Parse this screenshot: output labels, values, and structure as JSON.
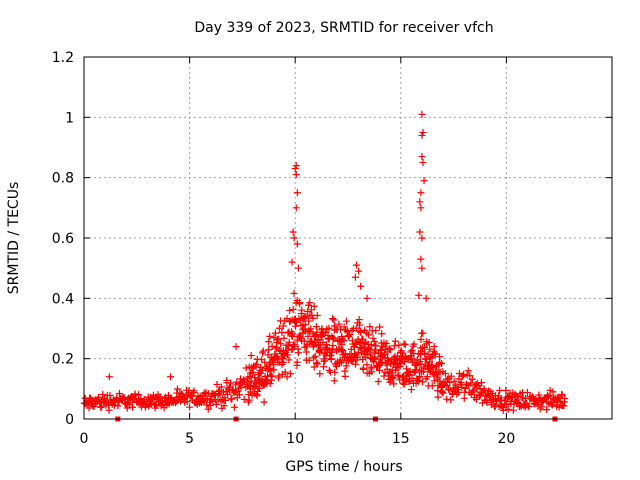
{
  "chart_data": {
    "type": "scatter",
    "title": "Day 339 of 2023, SRMTID for receiver vfch",
    "xlabel": "GPS time / hours",
    "ylabel": "SRMTID / TECUs",
    "xlim": [
      0,
      25
    ],
    "ylim": [
      0,
      1.2
    ],
    "xticks": [
      0,
      5,
      10,
      15,
      20
    ],
    "xtick_labels": [
      "0",
      "5",
      "10",
      "15",
      "20"
    ],
    "yticks": [
      0,
      0.2,
      0.4,
      0.6,
      0.8,
      1,
      1.2
    ],
    "ytick_labels": [
      "0",
      "0.2",
      "0.4",
      "0.6",
      "0.8",
      "1",
      "1.2"
    ],
    "grid": true,
    "marker": "+",
    "color": "#ff0000",
    "series": [
      {
        "name": "SRMTID",
        "profile_note": "approximate envelope of dense '+' markers read from the plot",
        "profile": {
          "x": [
            0,
            1,
            2,
            3,
            4,
            5,
            6,
            7,
            7.5,
            8,
            8.5,
            9,
            9.5,
            10,
            10.5,
            11,
            11.5,
            12,
            12.5,
            13,
            13.5,
            14,
            14.5,
            15,
            15.5,
            16,
            16.5,
            17,
            17.5,
            18,
            18.5,
            19,
            19.5,
            20,
            21,
            22,
            22.8
          ],
          "median": [
            0.05,
            0.06,
            0.06,
            0.06,
            0.06,
            0.07,
            0.07,
            0.09,
            0.11,
            0.13,
            0.15,
            0.19,
            0.24,
            0.3,
            0.3,
            0.26,
            0.24,
            0.24,
            0.22,
            0.23,
            0.21,
            0.2,
            0.18,
            0.18,
            0.17,
            0.2,
            0.18,
            0.12,
            0.1,
            0.12,
            0.11,
            0.08,
            0.07,
            0.06,
            0.06,
            0.06,
            0.06
          ],
          "spread": [
            0.025,
            0.03,
            0.025,
            0.025,
            0.025,
            0.03,
            0.03,
            0.05,
            0.06,
            0.07,
            0.08,
            0.1,
            0.12,
            0.13,
            0.12,
            0.11,
            0.1,
            0.1,
            0.1,
            0.1,
            0.09,
            0.09,
            0.08,
            0.08,
            0.08,
            0.09,
            0.09,
            0.06,
            0.05,
            0.06,
            0.05,
            0.04,
            0.03,
            0.03,
            0.03,
            0.03,
            0.03
          ]
        },
        "spikes": [
          {
            "x": 10.05,
            "y": 0.84
          },
          {
            "x": 10.0,
            "y": 0.83
          },
          {
            "x": 10.05,
            "y": 0.81
          },
          {
            "x": 10.1,
            "y": 0.75
          },
          {
            "x": 10.05,
            "y": 0.7
          },
          {
            "x": 9.9,
            "y": 0.62
          },
          {
            "x": 9.95,
            "y": 0.6
          },
          {
            "x": 10.1,
            "y": 0.58
          },
          {
            "x": 9.85,
            "y": 0.52
          },
          {
            "x": 10.15,
            "y": 0.5
          },
          {
            "x": 12.9,
            "y": 0.51
          },
          {
            "x": 13.0,
            "y": 0.49
          },
          {
            "x": 12.85,
            "y": 0.47
          },
          {
            "x": 13.1,
            "y": 0.44
          },
          {
            "x": 13.4,
            "y": 0.4
          },
          {
            "x": 16.0,
            "y": 1.01
          },
          {
            "x": 16.05,
            "y": 0.95
          },
          {
            "x": 16.0,
            "y": 0.94
          },
          {
            "x": 16.0,
            "y": 0.87
          },
          {
            "x": 16.05,
            "y": 0.85
          },
          {
            "x": 16.1,
            "y": 0.79
          },
          {
            "x": 15.95,
            "y": 0.75
          },
          {
            "x": 15.9,
            "y": 0.72
          },
          {
            "x": 15.95,
            "y": 0.7
          },
          {
            "x": 15.9,
            "y": 0.62
          },
          {
            "x": 16.0,
            "y": 0.6
          },
          {
            "x": 15.95,
            "y": 0.53
          },
          {
            "x": 16.0,
            "y": 0.5
          },
          {
            "x": 15.85,
            "y": 0.41
          },
          {
            "x": 16.2,
            "y": 0.4
          },
          {
            "x": 7.2,
            "y": 0.24
          },
          {
            "x": 4.1,
            "y": 0.14
          },
          {
            "x": 1.2,
            "y": 0.14
          }
        ]
      }
    ],
    "baseline_markers_x": [
      1.6,
      7.2,
      13.8,
      22.3
    ]
  }
}
